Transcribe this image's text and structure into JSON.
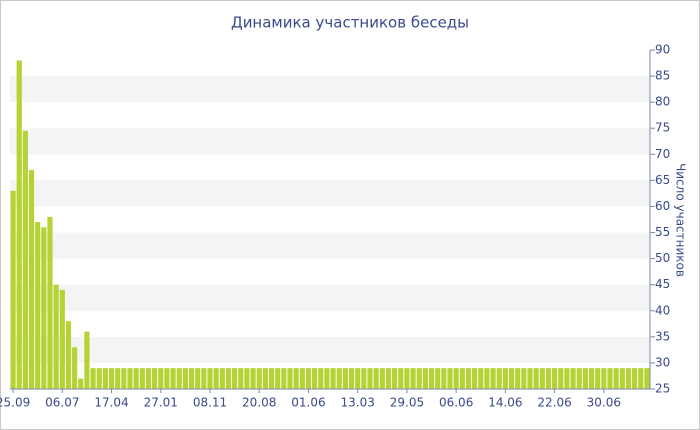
{
  "chart_data": {
    "type": "bar",
    "title": "Динамика участников беседы",
    "y_label": "Число участников",
    "color": "#b5d334",
    "grid": "bands",
    "y_axis_side": "right",
    "ylim": [
      25,
      90
    ],
    "yticks": [
      25,
      30,
      35,
      40,
      45,
      50,
      55,
      60,
      65,
      70,
      75,
      80,
      85,
      90
    ],
    "categories": [
      "25.09",
      null,
      null,
      null,
      null,
      null,
      null,
      null,
      "06.07",
      null,
      null,
      null,
      null,
      null,
      null,
      null,
      "17.04",
      null,
      null,
      null,
      null,
      null,
      null,
      null,
      "27.01",
      null,
      null,
      null,
      null,
      null,
      null,
      null,
      "08.11",
      null,
      null,
      null,
      null,
      null,
      null,
      null,
      "20.08",
      null,
      null,
      null,
      null,
      null,
      null,
      null,
      "01.06",
      null,
      null,
      null,
      null,
      null,
      null,
      null,
      "13.03",
      null,
      null,
      null,
      null,
      null,
      null,
      null,
      "29.05",
      null,
      null,
      null,
      null,
      null,
      null,
      null,
      "06.06",
      null,
      null,
      null,
      null,
      null,
      null,
      null,
      "14.06",
      null,
      null,
      null,
      null,
      null,
      null,
      null,
      "22.06",
      null,
      null,
      null,
      null,
      null,
      null,
      null,
      "30.06",
      null,
      null,
      null,
      null,
      null,
      null,
      null
    ],
    "values": [
      63,
      88,
      74.5,
      67,
      57,
      56,
      58,
      45,
      44,
      38,
      33,
      27,
      36,
      29,
      29,
      29,
      29,
      29,
      29,
      29,
      29,
      29,
      29,
      29,
      29,
      29,
      29,
      29,
      29,
      29,
      29,
      29,
      29,
      29,
      29,
      29,
      29,
      29,
      29,
      29,
      29,
      29,
      29,
      29,
      29,
      29,
      29,
      29,
      29,
      29,
      29,
      29,
      29,
      29,
      29,
      29,
      29,
      29,
      29,
      29,
      29,
      29,
      29,
      29,
      29,
      29,
      29,
      29,
      29,
      29,
      29,
      29,
      29,
      29,
      29,
      29,
      29,
      29,
      29,
      29,
      29,
      29,
      29,
      29,
      29,
      29,
      29,
      29,
      29,
      29,
      29,
      29,
      29,
      29,
      29,
      29,
      29,
      29,
      29,
      29,
      29,
      29,
      29,
      29
    ]
  }
}
